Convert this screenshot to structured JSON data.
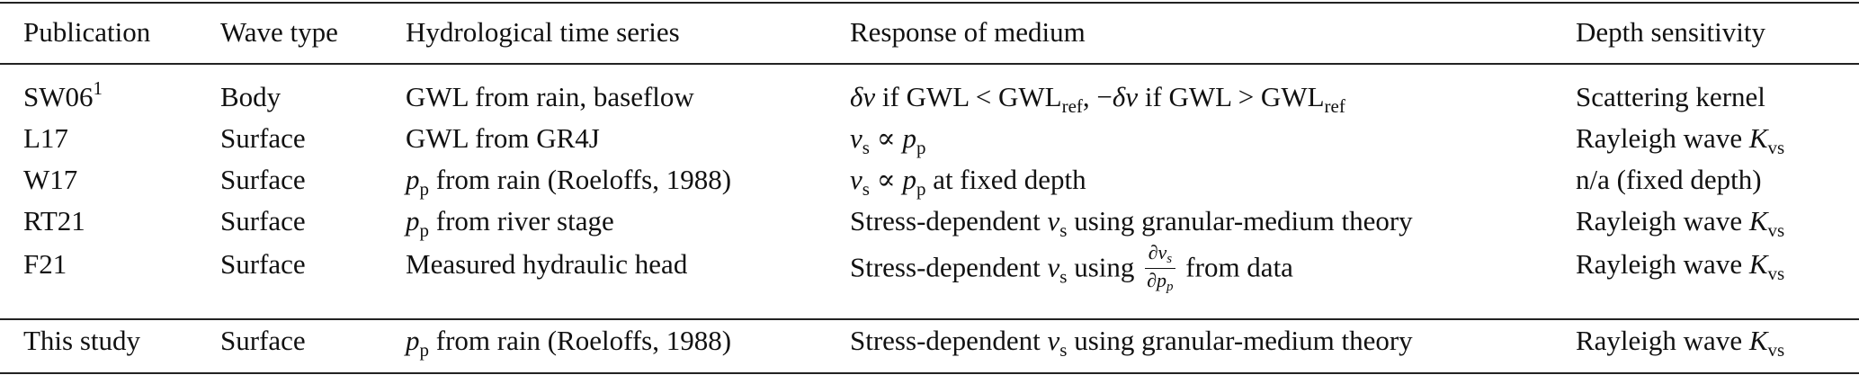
{
  "table": {
    "headers": {
      "publication": "Publication",
      "wave_type": "Wave type",
      "hydro_series": "Hydrological time series",
      "response": "Response of medium",
      "depth": "Depth sensitivity"
    },
    "rows": [
      {
        "publication": "SW06",
        "publication_sup": "1",
        "wave_type": "Body",
        "hydro_series": "GWL from rain, baseflow",
        "response": {
          "p1": "δv",
          "p2": " if GWL < GWL",
          "p2_sub": "ref",
          "p3": ", −",
          "p4": "δv",
          "p5": " if GWL > GWL",
          "p5_sub": "ref"
        },
        "depth": "Scattering kernel"
      },
      {
        "publication": "L17",
        "wave_type": "Surface",
        "hydro_series": "GWL from GR4J",
        "response": {
          "v": "v",
          "v_sub": "s",
          "mid": " ∝ ",
          "p": "p",
          "p_sub": "p"
        },
        "depth": {
          "text": "Rayleigh wave ",
          "k": "K",
          "k_sub": "vs"
        }
      },
      {
        "publication": "W17",
        "wave_type": "Surface",
        "hydro_series": {
          "p": "p",
          "p_sub": "p",
          "rest": " from rain (Roeloffs, 1988)"
        },
        "response": {
          "v": "v",
          "v_sub": "s",
          "mid": " ∝ ",
          "p": "p",
          "p_sub": "p",
          "rest": " at fixed depth"
        },
        "depth": "n/a (fixed depth)"
      },
      {
        "publication": "RT21",
        "wave_type": "Surface",
        "hydro_series": {
          "p": "p",
          "p_sub": "p",
          "rest": " from river stage"
        },
        "response": {
          "pre": "Stress-dependent ",
          "v": "v",
          "v_sub": "s",
          "rest": " using granular-medium theory"
        },
        "depth": {
          "text": "Rayleigh wave ",
          "k": "K",
          "k_sub": "vs"
        }
      },
      {
        "publication": "F21",
        "wave_type": "Surface",
        "hydro_series": "Measured hydraulic head",
        "response": {
          "pre": "Stress-dependent ",
          "v": "v",
          "v_sub": "s",
          "using": " using ",
          "frac_num": "∂v",
          "frac_num_sub": "s",
          "frac_den": "∂p",
          "frac_den_sub": "p",
          "rest": " from data"
        },
        "depth": {
          "text": "Rayleigh wave ",
          "k": "K",
          "k_sub": "vs"
        }
      }
    ],
    "study_row": {
      "publication": "This study",
      "wave_type": "Surface",
      "hydro_series": {
        "p": "p",
        "p_sub": "p",
        "rest": " from rain (Roeloffs, 1988)"
      },
      "response": {
        "pre": "Stress-dependent ",
        "v": "v",
        "v_sub": "s",
        "rest": " using granular-medium theory"
      },
      "depth": {
        "text": "Rayleigh wave ",
        "k": "K",
        "k_sub": "vs"
      }
    }
  }
}
